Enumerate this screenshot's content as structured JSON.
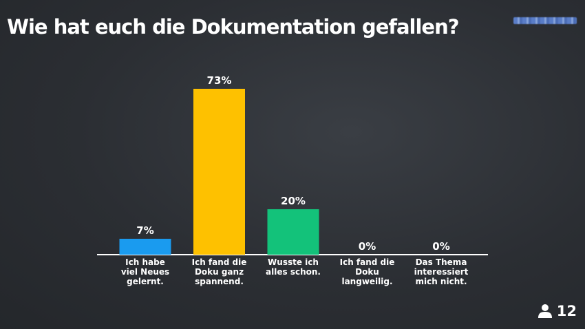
{
  "title": "Wie hat euch die Dokumentation gefallen?",
  "participants": {
    "count": "12",
    "icon": "person-icon"
  },
  "brand_logo": {
    "icon": "brand-logo",
    "color": "#5f86d8"
  },
  "chart_data": {
    "type": "bar",
    "categories": [
      [
        "Ich habe",
        "viel Neues",
        "gelernt."
      ],
      [
        "Ich fand die",
        "Doku ganz",
        "spannend."
      ],
      [
        "Wusste ich",
        "alles schon."
      ],
      [
        "Ich fand die",
        "Doku",
        "langweilig."
      ],
      [
        "Das Thema",
        "interessiert",
        "mich nicht."
      ]
    ],
    "values": [
      7,
      73,
      20,
      0,
      0
    ],
    "value_labels": [
      "7%",
      "73%",
      "20%",
      "0%",
      "0%"
    ],
    "colors": [
      "#1a9bef",
      "#fec100",
      "#13c27a",
      "#1a9bef",
      "#1a9bef"
    ],
    "ylim": [
      0,
      73
    ],
    "grid": false,
    "legend": "none"
  }
}
